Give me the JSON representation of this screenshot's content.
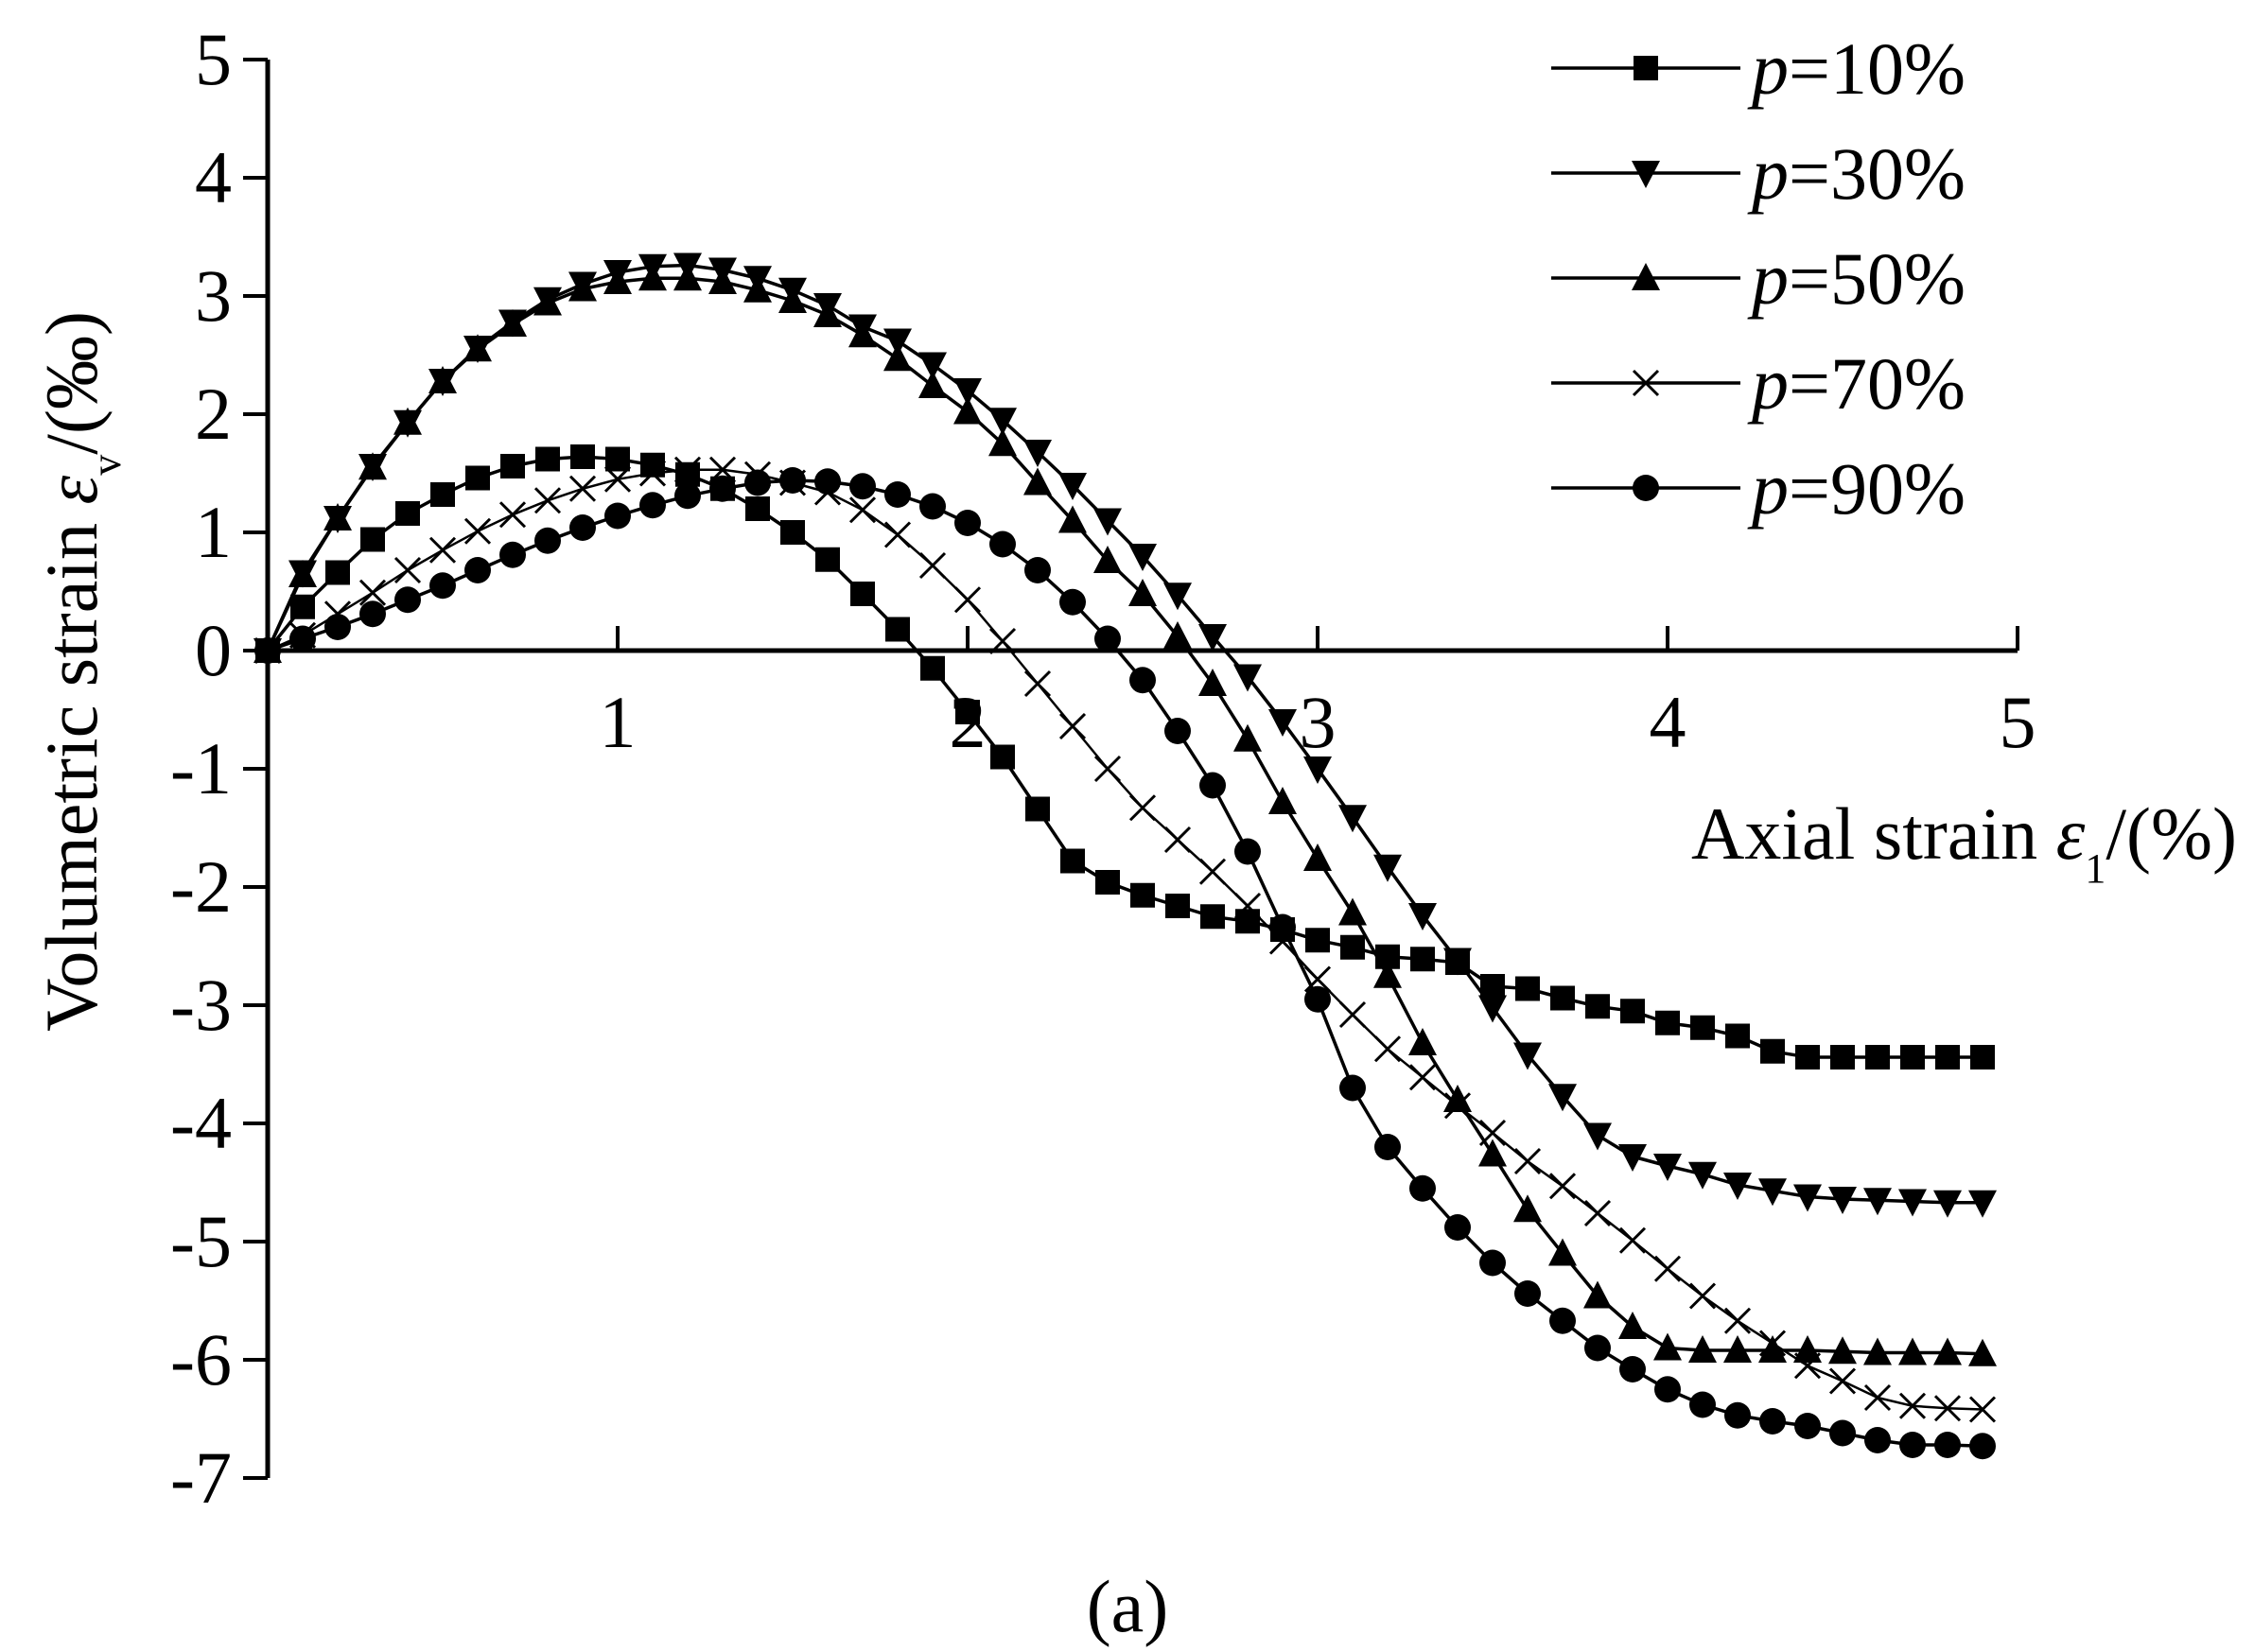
{
  "chart_data": {
    "type": "line",
    "panel_label": "(a)",
    "xlabel": "Axial strain ε1/(%)",
    "ylabel": "Volumetric strain εv/(‰)",
    "xlim": [
      0,
      5
    ],
    "ylim": [
      -7,
      5
    ],
    "x_ticks": [
      1,
      2,
      3,
      4,
      5
    ],
    "y_ticks": [
      5,
      4,
      3,
      2,
      1,
      0,
      -1,
      -2,
      -3,
      -4,
      -5,
      -6,
      -7
    ],
    "grid": false,
    "legend_position": "top-right",
    "series": [
      {
        "name": "p=10%",
        "marker": "square",
        "x": [
          0,
          0.1,
          0.2,
          0.3,
          0.4,
          0.5,
          0.6,
          0.7,
          0.8,
          0.9,
          1.0,
          1.1,
          1.2,
          1.3,
          1.4,
          1.5,
          1.6,
          1.7,
          1.8,
          1.9,
          2.0,
          2.1,
          2.2,
          2.3,
          2.4,
          2.5,
          2.6,
          2.7,
          2.8,
          2.9,
          3.0,
          3.1,
          3.2,
          3.3,
          3.4,
          3.5,
          3.6,
          3.7,
          3.8,
          3.9,
          4.0,
          4.1,
          4.2,
          4.3,
          4.4,
          4.5,
          4.6,
          4.7,
          4.8,
          4.9
        ],
        "y": [
          0,
          0.37,
          0.66,
          0.94,
          1.16,
          1.32,
          1.46,
          1.56,
          1.62,
          1.64,
          1.62,
          1.57,
          1.49,
          1.37,
          1.2,
          1.0,
          0.77,
          0.48,
          0.18,
          -0.15,
          -0.52,
          -0.9,
          -1.34,
          -1.78,
          -1.96,
          -2.07,
          -2.16,
          -2.25,
          -2.29,
          -2.36,
          -2.45,
          -2.51,
          -2.59,
          -2.61,
          -2.64,
          -2.84,
          -2.86,
          -2.94,
          -3.01,
          -3.05,
          -3.15,
          -3.19,
          -3.26,
          -3.39,
          -3.44,
          -3.44,
          -3.44,
          -3.44,
          -3.44,
          -3.44
        ]
      },
      {
        "name": "p=30%",
        "marker": "triangle-down",
        "x": [
          0,
          0.1,
          0.2,
          0.3,
          0.4,
          0.5,
          0.6,
          0.7,
          0.8,
          0.9,
          1.0,
          1.1,
          1.2,
          1.3,
          1.4,
          1.5,
          1.6,
          1.7,
          1.8,
          1.9,
          2.0,
          2.1,
          2.2,
          2.3,
          2.4,
          2.5,
          2.6,
          2.7,
          2.8,
          2.9,
          3.0,
          3.1,
          3.2,
          3.3,
          3.4,
          3.5,
          3.6,
          3.7,
          3.8,
          3.9,
          4.0,
          4.1,
          4.2,
          4.3,
          4.4,
          4.5,
          4.6,
          4.7,
          4.8,
          4.9
        ],
        "y": [
          0,
          0.66,
          1.12,
          1.56,
          1.93,
          2.28,
          2.56,
          2.78,
          2.97,
          3.1,
          3.2,
          3.25,
          3.26,
          3.22,
          3.15,
          3.05,
          2.92,
          2.74,
          2.62,
          2.42,
          2.2,
          1.95,
          1.68,
          1.4,
          1.1,
          0.8,
          0.47,
          0.12,
          -0.22,
          -0.6,
          -1.0,
          -1.41,
          -1.83,
          -2.24,
          -2.62,
          -3.02,
          -3.42,
          -3.77,
          -4.1,
          -4.28,
          -4.36,
          -4.43,
          -4.52,
          -4.57,
          -4.62,
          -4.64,
          -4.65,
          -4.66,
          -4.67,
          -4.67
        ]
      },
      {
        "name": "p=50%",
        "marker": "triangle-up",
        "x": [
          0,
          0.1,
          0.2,
          0.3,
          0.4,
          0.5,
          0.6,
          0.7,
          0.8,
          0.9,
          1.0,
          1.1,
          1.2,
          1.3,
          1.4,
          1.5,
          1.6,
          1.7,
          1.8,
          1.9,
          2.0,
          2.1,
          2.2,
          2.3,
          2.4,
          2.5,
          2.6,
          2.7,
          2.8,
          2.9,
          3.0,
          3.1,
          3.2,
          3.3,
          3.4,
          3.5,
          3.6,
          3.7,
          3.8,
          3.9,
          4.0,
          4.1,
          4.2,
          4.3,
          4.4,
          4.5,
          4.6,
          4.7,
          4.8,
          4.9
        ],
        "y": [
          0,
          0.64,
          1.12,
          1.55,
          1.93,
          2.28,
          2.55,
          2.76,
          2.94,
          3.06,
          3.12,
          3.15,
          3.15,
          3.12,
          3.05,
          2.96,
          2.84,
          2.67,
          2.47,
          2.24,
          2.02,
          1.75,
          1.42,
          1.1,
          0.76,
          0.48,
          0.12,
          -0.28,
          -0.75,
          -1.28,
          -1.76,
          -2.22,
          -2.75,
          -3.32,
          -3.8,
          -4.26,
          -4.73,
          -5.1,
          -5.46,
          -5.72,
          -5.9,
          -5.92,
          -5.92,
          -5.92,
          -5.92,
          -5.93,
          -5.94,
          -5.94,
          -5.94,
          -5.95
        ]
      },
      {
        "name": "p=70%",
        "marker": "x",
        "x": [
          0,
          0.1,
          0.2,
          0.3,
          0.4,
          0.5,
          0.6,
          0.7,
          0.8,
          0.9,
          1.0,
          1.1,
          1.2,
          1.3,
          1.4,
          1.5,
          1.6,
          1.7,
          1.8,
          1.9,
          2.0,
          2.1,
          2.2,
          2.3,
          2.4,
          2.5,
          2.6,
          2.7,
          2.8,
          2.9,
          3.0,
          3.1,
          3.2,
          3.3,
          3.4,
          3.5,
          3.6,
          3.7,
          3.8,
          3.9,
          4.0,
          4.1,
          4.2,
          4.3,
          4.4,
          4.5,
          4.6,
          4.7,
          4.8,
          4.9
        ],
        "y": [
          0,
          0.13,
          0.31,
          0.49,
          0.68,
          0.85,
          1.01,
          1.15,
          1.27,
          1.37,
          1.45,
          1.5,
          1.53,
          1.53,
          1.49,
          1.42,
          1.34,
          1.19,
          0.98,
          0.72,
          0.43,
          0.08,
          -0.28,
          -0.64,
          -1.0,
          -1.33,
          -1.6,
          -1.87,
          -2.16,
          -2.46,
          -2.78,
          -3.08,
          -3.37,
          -3.61,
          -3.85,
          -4.08,
          -4.32,
          -4.53,
          -4.76,
          -4.99,
          -5.23,
          -5.46,
          -5.67,
          -5.86,
          -6.05,
          -6.18,
          -6.32,
          -6.39,
          -6.41,
          -6.42
        ]
      },
      {
        "name": "p=90%",
        "marker": "circle",
        "x": [
          0,
          0.1,
          0.2,
          0.3,
          0.4,
          0.5,
          0.6,
          0.7,
          0.8,
          0.9,
          1.0,
          1.1,
          1.2,
          1.3,
          1.4,
          1.5,
          1.6,
          1.7,
          1.8,
          1.9,
          2.0,
          2.1,
          2.2,
          2.3,
          2.4,
          2.5,
          2.6,
          2.7,
          2.8,
          2.9,
          3.0,
          3.1,
          3.2,
          3.3,
          3.4,
          3.5,
          3.6,
          3.7,
          3.8,
          3.9,
          4.0,
          4.1,
          4.2,
          4.3,
          4.4,
          4.5,
          4.6,
          4.7,
          4.8,
          4.9
        ],
        "y": [
          0,
          0.1,
          0.2,
          0.31,
          0.43,
          0.55,
          0.68,
          0.81,
          0.93,
          1.04,
          1.14,
          1.23,
          1.31,
          1.37,
          1.42,
          1.44,
          1.43,
          1.39,
          1.32,
          1.22,
          1.08,
          0.9,
          0.68,
          0.41,
          0.1,
          -0.25,
          -0.68,
          -1.14,
          -1.7,
          -2.34,
          -2.95,
          -3.7,
          -4.2,
          -4.55,
          -4.88,
          -5.18,
          -5.44,
          -5.67,
          -5.9,
          -6.08,
          -6.25,
          -6.38,
          -6.47,
          -6.52,
          -6.56,
          -6.62,
          -6.68,
          -6.72,
          -6.72,
          -6.73
        ]
      }
    ]
  }
}
